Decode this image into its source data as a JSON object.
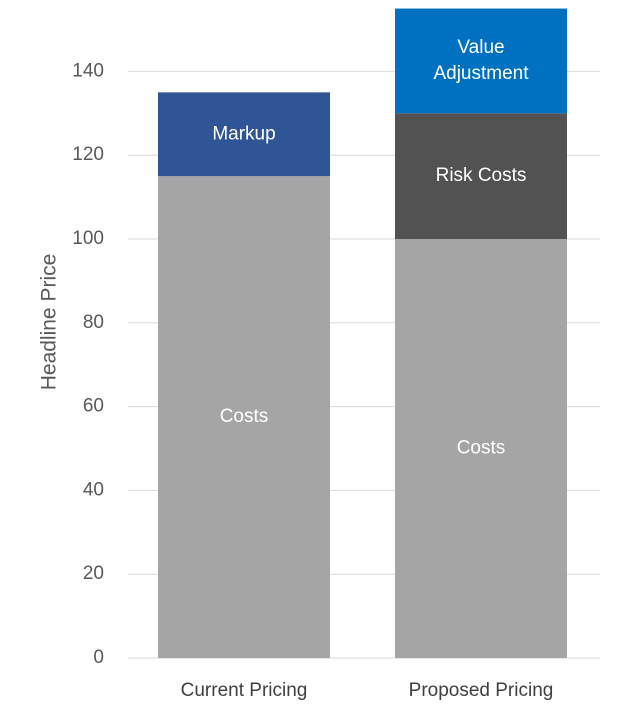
{
  "chart_data": {
    "type": "bar",
    "stacked": true,
    "title": "",
    "xlabel": "",
    "ylabel": "Headline Price",
    "ylim": [
      0,
      155
    ],
    "yticks": [
      0,
      20,
      40,
      60,
      80,
      100,
      120,
      140
    ],
    "grid": true,
    "legend": "none",
    "categories": [
      "Current Pricing",
      "Proposed Pricing"
    ],
    "bars": [
      {
        "category": "Current Pricing",
        "segments": [
          {
            "label": "Costs",
            "value": 115,
            "color": "#a5a5a5"
          },
          {
            "label": "Markup",
            "value": 20,
            "color": "#2f5597"
          }
        ]
      },
      {
        "category": "Proposed Pricing",
        "segments": [
          {
            "label": "Costs",
            "value": 100,
            "color": "#a5a5a5"
          },
          {
            "label": "Risk Costs",
            "value": 30,
            "color": "#525252"
          },
          {
            "label": "Value Adjustment",
            "value": 25,
            "color": "#0070c0",
            "label_lines": [
              "Value",
              "Adjustment"
            ]
          }
        ]
      }
    ]
  }
}
